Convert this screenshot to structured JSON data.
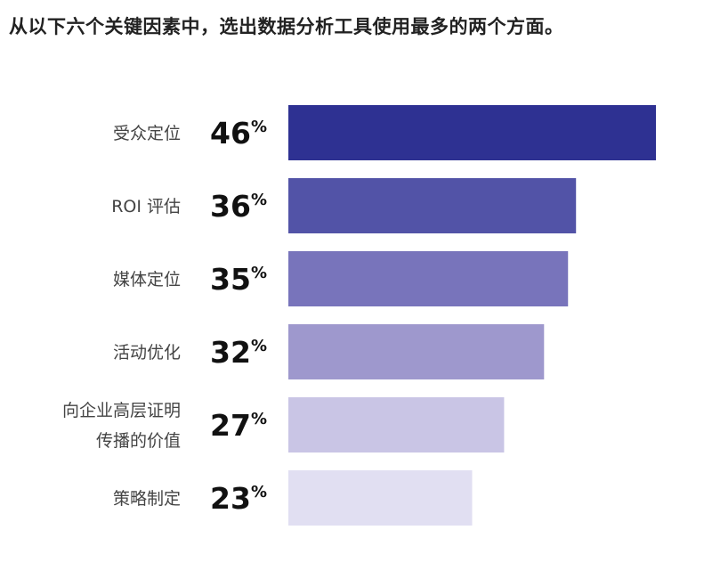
{
  "chart_data": {
    "type": "bar",
    "orientation": "horizontal",
    "title": "从以下六个关键因素中，选出数据分析工具使用最多的两个方面。",
    "categories": [
      [
        "受众定位"
      ],
      [
        "ROI 评估"
      ],
      [
        "媒体定位"
      ],
      [
        "活动优化"
      ],
      [
        "向企业高层证明",
        "传播的价值"
      ],
      [
        "策略制定"
      ]
    ],
    "values": [
      46,
      36,
      35,
      32,
      27,
      23
    ],
    "value_suffix": "%",
    "colors": [
      "#2e3192",
      "#5253a7",
      "#7874bb",
      "#9e98cd",
      "#c9c5e5",
      "#e1dff2"
    ],
    "xlim": [
      0,
      46
    ],
    "grid": false,
    "legend": "none"
  }
}
